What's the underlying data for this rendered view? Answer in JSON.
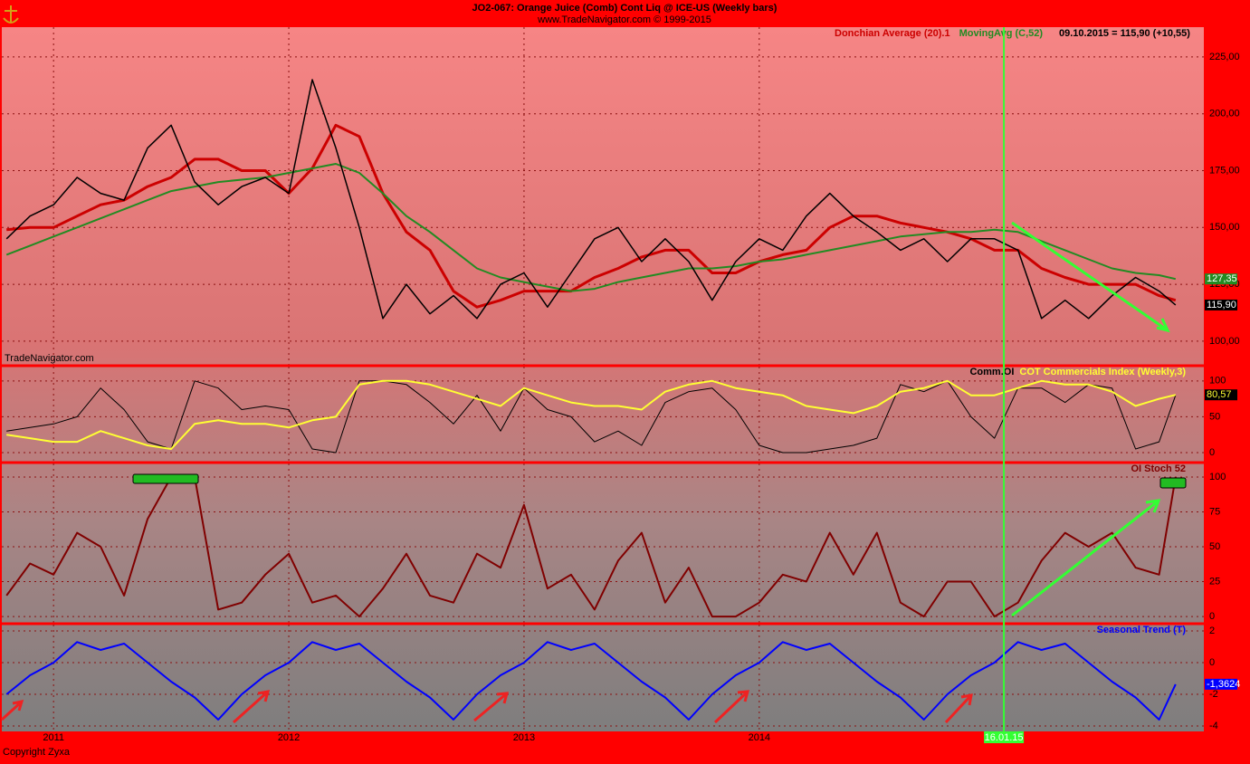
{
  "chart_data": [
    {
      "type": "line",
      "title": "JO2-067:  Orange Juice (Comb) Cont Liq @ ICE-US  (Weekly bars)",
      "subtitle": "www.TradeNavigator.com © 1999-2015",
      "source": "TradeNavigator.com",
      "status": "09.10.2015 = 115,90 (+10,55)",
      "x": [
        2010.8,
        2010.9,
        2011.0,
        2011.1,
        2011.2,
        2011.3,
        2011.4,
        2011.5,
        2011.6,
        2011.7,
        2011.8,
        2011.9,
        2012.0,
        2012.1,
        2012.2,
        2012.3,
        2012.4,
        2012.5,
        2012.6,
        2012.7,
        2012.8,
        2012.9,
        2013.0,
        2013.1,
        2013.2,
        2013.3,
        2013.4,
        2013.5,
        2013.6,
        2013.7,
        2013.8,
        2013.9,
        2014.0,
        2014.1,
        2014.2,
        2014.3,
        2014.4,
        2014.5,
        2014.6,
        2014.7,
        2014.8,
        2014.9,
        2015.0,
        2015.1,
        2015.2,
        2015.3,
        2015.4,
        2015.5,
        2015.6,
        2015.7,
        2015.77
      ],
      "xlim": [
        2010.78,
        2015.89
      ],
      "xticks": [
        2011,
        2012,
        2013,
        2014
      ],
      "vline": {
        "x": 2015.04,
        "label": "16.01.15",
        "color": "#33ff33"
      },
      "ylim": [
        89.6,
        238.1
      ],
      "yticks": [
        {
          "value": 100,
          "label": "100,00"
        },
        {
          "value": 125,
          "label": "125,00"
        },
        {
          "value": 150,
          "label": "150,00"
        },
        {
          "value": 175,
          "label": "175,00"
        },
        {
          "value": 200,
          "label": "200,00"
        },
        {
          "value": 225,
          "label": "225,00"
        }
      ],
      "grid": true,
      "series": [
        {
          "name": "Donchian Average (20).1",
          "color": "#cc0000",
          "width": 3,
          "values": [
            149,
            150,
            150,
            155,
            160,
            162,
            168,
            172,
            180,
            180,
            175,
            175,
            165,
            176,
            195,
            190,
            165,
            148,
            140,
            122,
            115,
            118,
            122,
            122,
            122,
            128,
            132,
            137,
            140,
            140,
            130,
            130,
            135,
            138,
            140,
            150,
            155,
            155,
            152,
            150,
            148,
            145,
            140,
            140,
            132,
            128,
            125,
            125,
            125,
            120,
            118
          ]
        },
        {
          "name": "MovingAvg (C,52)",
          "color": "#228b22",
          "width": 2,
          "last_label": "127,35",
          "values": [
            138,
            142,
            146,
            150,
            154,
            158,
            162,
            166,
            168,
            170,
            171,
            172,
            174,
            176,
            178,
            174,
            165,
            155,
            148,
            140,
            132,
            128,
            126,
            124,
            122,
            123,
            126,
            128,
            130,
            132,
            132,
            133,
            135,
            136,
            138,
            140,
            142,
            144,
            146,
            147,
            148,
            148,
            149,
            148,
            144,
            140,
            136,
            132,
            130,
            129,
            127.35
          ]
        },
        {
          "color": "#000000",
          "width": 1.5,
          "last_label": "115,90",
          "values": [
            145,
            155,
            160,
            172,
            165,
            162,
            185,
            195,
            170,
            160,
            168,
            172,
            165,
            215,
            185,
            150,
            110,
            125,
            112,
            120,
            110,
            125,
            130,
            115,
            130,
            145,
            150,
            135,
            145,
            135,
            118,
            135,
            145,
            140,
            155,
            165,
            155,
            148,
            140,
            145,
            135,
            145,
            145,
            140,
            110,
            118,
            110,
            120,
            128,
            122,
            115.9
          ]
        }
      ]
    },
    {
      "type": "line",
      "ylim": [
        -12.7,
        120
      ],
      "yticks": [
        0,
        50,
        100
      ],
      "grid": true,
      "series": [
        {
          "name": "Comm.OI",
          "color": "#000000",
          "width": 1,
          "values": [
            30,
            35,
            40,
            50,
            90,
            60,
            15,
            5,
            100,
            90,
            60,
            65,
            60,
            5,
            0,
            100,
            100,
            95,
            70,
            40,
            80,
            30,
            90,
            60,
            50,
            15,
            30,
            10,
            70,
            85,
            90,
            60,
            10,
            0,
            0,
            5,
            10,
            20,
            95,
            85,
            100,
            50,
            20,
            90,
            90,
            70,
            95,
            90,
            5,
            15,
            80
          ]
        },
        {
          "name": "COT Commercials Index (Weekly,3)",
          "color": "#ffff33",
          "width": 2,
          "last_label": "80,57",
          "values": [
            25,
            20,
            15,
            15,
            30,
            20,
            10,
            5,
            40,
            45,
            40,
            40,
            35,
            45,
            50,
            95,
            100,
            100,
            95,
            85,
            75,
            65,
            90,
            80,
            70,
            65,
            65,
            60,
            85,
            95,
            100,
            90,
            85,
            80,
            65,
            60,
            55,
            65,
            85,
            90,
            100,
            80,
            80,
            90,
            100,
            95,
            95,
            85,
            65,
            75,
            80.57
          ]
        }
      ]
    },
    {
      "type": "line",
      "ylim": [
        -4.5,
        109.7
      ],
      "yticks": [
        0,
        25,
        50,
        75,
        100
      ],
      "grid": true,
      "series": [
        {
          "name": "OI Stoch 52",
          "color": "#800000",
          "width": 2,
          "values": [
            15,
            38,
            30,
            60,
            50,
            15,
            70,
            100,
            100,
            5,
            10,
            30,
            45,
            10,
            15,
            0,
            20,
            45,
            15,
            10,
            45,
            35,
            80,
            20,
            30,
            5,
            40,
            60,
            10,
            35,
            0,
            0,
            10,
            30,
            25,
            60,
            30,
            60,
            10,
            0,
            25,
            25,
            0,
            10,
            40,
            60,
            50,
            60,
            35,
            30,
            100
          ]
        }
      ]
    },
    {
      "type": "line",
      "ylim": [
        -4.34,
        2.4
      ],
      "yticks": [
        -4,
        -2,
        0,
        2
      ],
      "grid": true,
      "footer": "Copyright Zyxa",
      "series": [
        {
          "name": "Seasonal Trend (T)",
          "color": "#0000ff",
          "width": 2,
          "last_label": "-1,3624",
          "values": [
            -2,
            -0.8,
            0,
            1.3,
            0.8,
            1.2,
            0,
            -1.2,
            -2.2,
            -3.6,
            -2,
            -0.8,
            0,
            1.3,
            0.8,
            1.2,
            0,
            -1.2,
            -2.2,
            -3.6,
            -2,
            -0.8,
            0,
            1.3,
            0.8,
            1.2,
            0,
            -1.2,
            -2.2,
            -3.6,
            -2,
            -0.8,
            0,
            1.3,
            0.8,
            1.2,
            0,
            -1.2,
            -2.2,
            -3.6,
            -2,
            -0.8,
            0,
            1.3,
            0.8,
            1.2,
            0,
            -1.2,
            -2.2,
            -3.6,
            -1.3624
          ]
        }
      ]
    }
  ]
}
